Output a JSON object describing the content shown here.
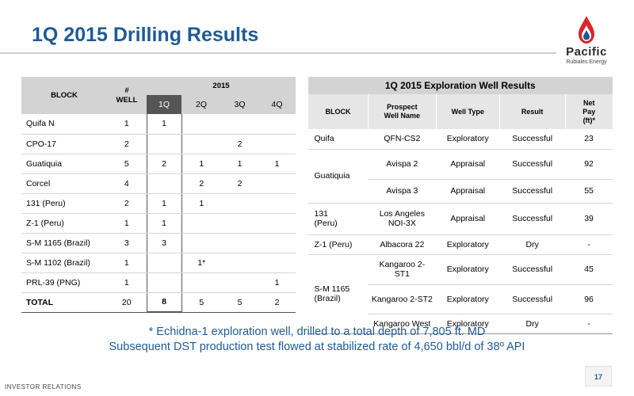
{
  "slide": {
    "title": "1Q 2015 Drilling Results",
    "footer_left": "Investor Relations",
    "page_number": "17"
  },
  "logo": {
    "wordmark": "Pacific",
    "subtitle": "Rubiales Energy",
    "colors": {
      "drop_red": "#d8262c",
      "drop_blue": "#1f5a96"
    }
  },
  "drilling_table": {
    "headers": {
      "block": "BLOCK",
      "wells": "#\nWELL",
      "year": "2015"
    },
    "quarters": [
      "1Q",
      "2Q",
      "3Q",
      "4Q"
    ],
    "rows": [
      {
        "block": "Quifa N",
        "wells": "1",
        "q1": "1",
        "q2": "",
        "q3": "",
        "q4": ""
      },
      {
        "block": "CPO-17",
        "wells": "2",
        "q1": "",
        "q2": "",
        "q3": "2",
        "q4": ""
      },
      {
        "block": "Guatiquia",
        "wells": "5",
        "q1": "2",
        "q2": "1",
        "q3": "1",
        "q4": "1"
      },
      {
        "block": "Corcel",
        "wells": "4",
        "q1": "",
        "q2": "2",
        "q3": "2",
        "q4": ""
      },
      {
        "block": "131 (Peru)",
        "wells": "2",
        "q1": "1",
        "q2": "1",
        "q3": "",
        "q4": ""
      },
      {
        "block": "Z-1 (Peru)",
        "wells": "1",
        "q1": "1",
        "q2": "",
        "q3": "",
        "q4": ""
      },
      {
        "block": "S-M 1165 (Brazil)",
        "wells": "3",
        "q1": "3",
        "q2": "",
        "q3": "",
        "q4": ""
      },
      {
        "block": "S-M 1102 (Brazil)",
        "wells": "1",
        "q1": "",
        "q2": "1*",
        "q3": "",
        "q4": ""
      },
      {
        "block": "PRL-39 (PNG)",
        "wells": "1",
        "q1": "",
        "q2": "",
        "q3": "",
        "q4": "1"
      }
    ],
    "total": {
      "block": "TOTAL",
      "wells": "20",
      "q1": "8",
      "q2": "5",
      "q3": "5",
      "q4": "2"
    }
  },
  "exploration_table": {
    "title": "1Q 2015 Exploration Well Results",
    "headers": {
      "block": "BLOCK",
      "prospect": "Prospect\nWell Name",
      "well_type": "Well Type",
      "result": "Result",
      "net_pay": "Net\nPay\n(ft)*"
    },
    "groups": [
      {
        "block": "Quifa",
        "wells": [
          {
            "name": "QFN-CS2",
            "type": "Exploratory",
            "result": "Successful",
            "pay": "23"
          }
        ]
      },
      {
        "block": "Guatiquia",
        "wells": [
          {
            "name": "Avispa 2",
            "type": "Appraisal",
            "result": "Successful",
            "pay": "92"
          },
          {
            "name": "Avispa 3",
            "type": "Appraisal",
            "result": "Successful",
            "pay": "55"
          }
        ]
      },
      {
        "block": "131\n(Peru)",
        "wells": [
          {
            "name": "Los Angeles\nNOI-3X",
            "type": "Appraisal",
            "result": "Successful",
            "pay": "39"
          }
        ]
      },
      {
        "block": "Z-1 (Peru)",
        "wells": [
          {
            "name": "Albacora 22",
            "type": "Exploratory",
            "result": "Dry",
            "pay": "-"
          }
        ]
      },
      {
        "block": "S-M 1165\n(Brazil)",
        "wells": [
          {
            "name": "Kangaroo 2- ST1",
            "type": "Exploratory",
            "result": "Successful",
            "pay": "45"
          },
          {
            "name": "Kangaroo 2-ST2",
            "type": "Exploratory",
            "result": "Successful",
            "pay": "96"
          },
          {
            "name": "Kangaroo West",
            "type": "Exploratory",
            "result": "Dry",
            "pay": "-"
          }
        ]
      }
    ]
  },
  "footnote": {
    "line1": "* Echidna-1 exploration well, drilled to a total depth of 7,805 ft. MD",
    "line2": "Subsequent DST production test flowed at stabilized rate of 4,650 bbl/d of 38º API"
  }
}
